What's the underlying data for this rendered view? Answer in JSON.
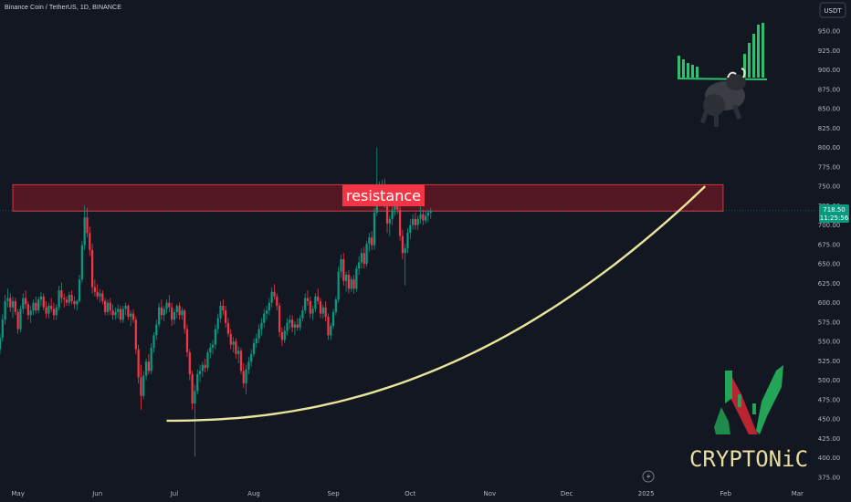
{
  "header": {
    "symbol_title": "Binance Coin / TetherUS, 1D, BINANCE"
  },
  "currency_button": "USDT",
  "price_tag": {
    "price": "718.50",
    "countdown": "11:25:56"
  },
  "annotations": {
    "resistance_label": "resistance",
    "brand": "CRYPTONiC"
  },
  "colors": {
    "up": "#089981",
    "down": "#f23645",
    "curve": "#e8e69a",
    "resistance_fill": "#8a1a26",
    "label_bg": "#f23645",
    "background": "#131722"
  },
  "icons": {
    "bull": "bull-icon",
    "logo": "cryptonic-logo-icon",
    "replay": "lightning-icon"
  },
  "chart_data": {
    "type": "candlestick",
    "title": "Binance Coin / TetherUS, 1D, BINANCE",
    "y_axis": {
      "position": "right",
      "range": [
        355,
        990
      ],
      "ticks": [
        375,
        400,
        425,
        450,
        475,
        500,
        525,
        550,
        575,
        600,
        625,
        650,
        675,
        700,
        725,
        750,
        775,
        800,
        825,
        850,
        875,
        900,
        925,
        950
      ],
      "tick_labels": [
        "375.00",
        "400.00",
        "425.00",
        "450.00",
        "475.00",
        "500.00",
        "525.00",
        "550.00",
        "575.00",
        "600.00",
        "625.00",
        "650.00",
        "675.00",
        "700.00",
        "725.00",
        "750.00",
        "775.00",
        "800.00",
        "825.00",
        "850.00",
        "875.00",
        "900.00",
        "925.00",
        "950.00"
      ]
    },
    "x_axis": {
      "range": [
        "2024-04-24",
        "2025-03-08"
      ],
      "ticks": [
        {
          "date": "2024-05-01",
          "label": "May"
        },
        {
          "date": "2024-06-01",
          "label": "Jun"
        },
        {
          "date": "2024-07-01",
          "label": "Jul"
        },
        {
          "date": "2024-08-01",
          "label": "Aug"
        },
        {
          "date": "2024-09-01",
          "label": "Sep"
        },
        {
          "date": "2024-10-01",
          "label": "Oct"
        },
        {
          "date": "2024-11-01",
          "label": "Nov"
        },
        {
          "date": "2024-12-01",
          "label": "Dec"
        },
        {
          "date": "2025-01-01",
          "label": "2025"
        },
        {
          "date": "2025-02-01",
          "label": "Feb"
        },
        {
          "date": "2025-03-01",
          "label": "Mar"
        }
      ]
    },
    "candles_start_date": "2024-04-24",
    "candles": [
      [
        540,
        560,
        534,
        555
      ],
      [
        555,
        585,
        550,
        578
      ],
      [
        578,
        610,
        572,
        602
      ],
      [
        602,
        618,
        594,
        606
      ],
      [
        606,
        612,
        588,
        594
      ],
      [
        594,
        608,
        580,
        602
      ],
      [
        602,
        606,
        584,
        588
      ],
      [
        588,
        592,
        560,
        566
      ],
      [
        566,
        596,
        562,
        592
      ],
      [
        592,
        612,
        586,
        606
      ],
      [
        606,
        616,
        592,
        598
      ],
      [
        598,
        602,
        578,
        584
      ],
      [
        584,
        596,
        574,
        590
      ],
      [
        590,
        604,
        584,
        600
      ],
      [
        600,
        608,
        586,
        590
      ],
      [
        590,
        608,
        586,
        604
      ],
      [
        604,
        614,
        596,
        608
      ],
      [
        608,
        612,
        590,
        594
      ],
      [
        594,
        602,
        580,
        586
      ],
      [
        586,
        600,
        580,
        596
      ],
      [
        596,
        606,
        588,
        592
      ],
      [
        592,
        600,
        578,
        584
      ],
      [
        584,
        598,
        578,
        594
      ],
      [
        594,
        622,
        590,
        616
      ],
      [
        616,
        626,
        600,
        606
      ],
      [
        606,
        612,
        594,
        604
      ],
      [
        604,
        608,
        596,
        600
      ],
      [
        600,
        614,
        596,
        610
      ],
      [
        610,
        616,
        598,
        602
      ],
      [
        602,
        608,
        592,
        598
      ],
      [
        598,
        604,
        590,
        602
      ],
      [
        602,
        636,
        600,
        630
      ],
      [
        630,
        680,
        626,
        674
      ],
      [
        674,
        725,
        668,
        710
      ],
      [
        710,
        722,
        684,
        690
      ],
      [
        690,
        698,
        660,
        668
      ],
      [
        668,
        676,
        612,
        620
      ],
      [
        620,
        630,
        608,
        614
      ],
      [
        614,
        624,
        604,
        608
      ],
      [
        608,
        618,
        600,
        612
      ],
      [
        612,
        616,
        598,
        602
      ],
      [
        602,
        606,
        584,
        588
      ],
      [
        588,
        604,
        584,
        600
      ],
      [
        600,
        606,
        584,
        590
      ],
      [
        590,
        598,
        578,
        584
      ],
      [
        584,
        594,
        578,
        588
      ],
      [
        588,
        598,
        580,
        592
      ],
      [
        592,
        596,
        574,
        578
      ],
      [
        578,
        596,
        574,
        592
      ],
      [
        592,
        600,
        584,
        596
      ],
      [
        596,
        598,
        578,
        582
      ],
      [
        582,
        590,
        570,
        586
      ],
      [
        586,
        592,
        574,
        578
      ],
      [
        578,
        582,
        534,
        540
      ],
      [
        540,
        546,
        496,
        504
      ],
      [
        504,
        520,
        462,
        480
      ],
      [
        480,
        512,
        476,
        506
      ],
      [
        506,
        528,
        500,
        524
      ],
      [
        524,
        534,
        508,
        512
      ],
      [
        512,
        548,
        508,
        542
      ],
      [
        542,
        562,
        536,
        558
      ],
      [
        558,
        578,
        552,
        572
      ],
      [
        572,
        600,
        568,
        594
      ],
      [
        594,
        604,
        578,
        584
      ],
      [
        584,
        596,
        576,
        592
      ],
      [
        592,
        604,
        586,
        600
      ],
      [
        600,
        610,
        588,
        594
      ],
      [
        594,
        600,
        570,
        578
      ],
      [
        578,
        592,
        572,
        588
      ],
      [
        588,
        598,
        580,
        596
      ],
      [
        596,
        600,
        578,
        584
      ],
      [
        584,
        594,
        578,
        590
      ],
      [
        590,
        592,
        560,
        566
      ],
      [
        566,
        572,
        530,
        536
      ],
      [
        536,
        540,
        500,
        508
      ],
      [
        508,
        512,
        462,
        470
      ],
      [
        470,
        494,
        402,
        486
      ],
      [
        486,
        514,
        482,
        508
      ],
      [
        508,
        520,
        498,
        512
      ],
      [
        512,
        524,
        504,
        520
      ],
      [
        520,
        528,
        510,
        516
      ],
      [
        516,
        540,
        512,
        536
      ],
      [
        536,
        548,
        528,
        542
      ],
      [
        542,
        552,
        534,
        546
      ],
      [
        546,
        572,
        540,
        566
      ],
      [
        566,
        586,
        560,
        580
      ],
      [
        580,
        602,
        574,
        596
      ],
      [
        596,
        604,
        584,
        590
      ],
      [
        590,
        596,
        568,
        574
      ],
      [
        574,
        580,
        556,
        560
      ],
      [
        560,
        566,
        540,
        546
      ],
      [
        546,
        556,
        536,
        550
      ],
      [
        550,
        554,
        528,
        534
      ],
      [
        534,
        544,
        522,
        538
      ],
      [
        538,
        542,
        508,
        512
      ],
      [
        512,
        522,
        490,
        496
      ],
      [
        496,
        520,
        482,
        514
      ],
      [
        514,
        530,
        508,
        524
      ],
      [
        524,
        540,
        518,
        534
      ],
      [
        534,
        554,
        530,
        548
      ],
      [
        548,
        560,
        542,
        554
      ],
      [
        554,
        572,
        548,
        566
      ],
      [
        566,
        580,
        558,
        574
      ],
      [
        574,
        592,
        568,
        586
      ],
      [
        586,
        596,
        578,
        590
      ],
      [
        590,
        606,
        584,
        600
      ],
      [
        600,
        620,
        594,
        614
      ],
      [
        614,
        624,
        604,
        608
      ],
      [
        608,
        612,
        590,
        596
      ],
      [
        596,
        600,
        556,
        562
      ],
      [
        562,
        568,
        544,
        552
      ],
      [
        552,
        570,
        548,
        564
      ],
      [
        564,
        580,
        558,
        574
      ],
      [
        574,
        584,
        566,
        578
      ],
      [
        578,
        584,
        562,
        568
      ],
      [
        568,
        576,
        558,
        572
      ],
      [
        572,
        580,
        564,
        568
      ],
      [
        568,
        584,
        564,
        580
      ],
      [
        580,
        596,
        576,
        590
      ],
      [
        590,
        612,
        586,
        606
      ],
      [
        606,
        616,
        596,
        602
      ],
      [
        602,
        608,
        580,
        586
      ],
      [
        586,
        596,
        578,
        592
      ],
      [
        592,
        612,
        588,
        608
      ],
      [
        608,
        618,
        598,
        602
      ],
      [
        602,
        606,
        580,
        586
      ],
      [
        586,
        598,
        580,
        594
      ],
      [
        594,
        602,
        576,
        582
      ],
      [
        582,
        586,
        552,
        558
      ],
      [
        558,
        574,
        552,
        570
      ],
      [
        570,
        592,
        566,
        588
      ],
      [
        588,
        608,
        584,
        604
      ],
      [
        604,
        646,
        600,
        640
      ],
      [
        640,
        662,
        632,
        656
      ],
      [
        656,
        664,
        622,
        628
      ],
      [
        628,
        640,
        614,
        636
      ],
      [
        636,
        642,
        612,
        618
      ],
      [
        618,
        634,
        614,
        630
      ],
      [
        630,
        636,
        612,
        618
      ],
      [
        618,
        648,
        614,
        644
      ],
      [
        644,
        660,
        636,
        652
      ],
      [
        652,
        670,
        644,
        664
      ],
      [
        664,
        672,
        644,
        650
      ],
      [
        650,
        680,
        646,
        676
      ],
      [
        676,
        690,
        666,
        684
      ],
      [
        684,
        692,
        668,
        674
      ],
      [
        674,
        722,
        668,
        716
      ],
      [
        716,
        800,
        712,
        744
      ],
      [
        744,
        756,
        726,
        734
      ],
      [
        734,
        758,
        728,
        752
      ],
      [
        752,
        760,
        722,
        728
      ],
      [
        728,
        740,
        690,
        702
      ],
      [
        702,
        712,
        686,
        708
      ],
      [
        708,
        726,
        700,
        720
      ],
      [
        720,
        738,
        712,
        732
      ],
      [
        732,
        740,
        714,
        720
      ],
      [
        720,
        724,
        680,
        686
      ],
      [
        686,
        694,
        656,
        664
      ],
      [
        664,
        676,
        622,
        670
      ],
      [
        670,
        696,
        664,
        690
      ],
      [
        690,
        708,
        682,
        700
      ],
      [
        700,
        714,
        694,
        708
      ],
      [
        708,
        716,
        694,
        700
      ],
      [
        700,
        712,
        694,
        708
      ],
      [
        708,
        724,
        702,
        714
      ],
      [
        714,
        720,
        700,
        706
      ],
      [
        706,
        718,
        702,
        712
      ],
      [
        712,
        720,
        704,
        716
      ],
      [
        716,
        722,
        708,
        718.5
      ]
    ],
    "annotations": [
      {
        "type": "zone",
        "label": "resistance",
        "y_range": [
          718,
          752
        ],
        "x_range": [
          "2024-04-29",
          "2025-01-31"
        ]
      },
      {
        "type": "curve",
        "label": "",
        "style": "support arc",
        "start": {
          "date": "2024-06-28",
          "price": 448
        },
        "end": {
          "date": "2025-01-24",
          "price": 750
        }
      }
    ],
    "last_price": 718.5,
    "grid": false
  }
}
